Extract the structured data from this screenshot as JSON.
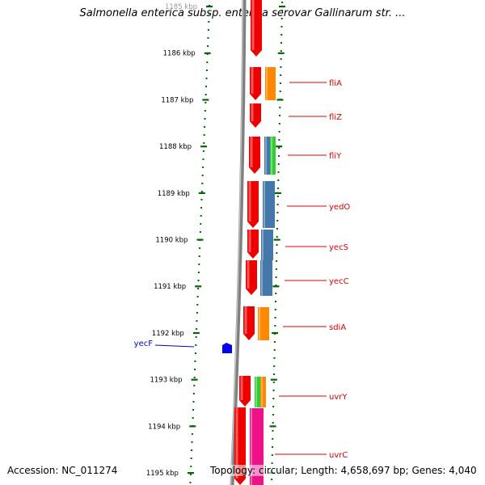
{
  "title": "Salmonella enterica subsp. enterica serovar Gallinarum str. ...",
  "footer": {
    "accession": "Accession: NC_011274",
    "topology": "Topology: circular; Length: 4,658,697 bp; Genes: 4,040"
  },
  "ticks": [
    "1185 kbp",
    "1186 kbp",
    "1187 kbp",
    "1188 kbp",
    "1189 kbp",
    "1190 kbp",
    "1191 kbp",
    "1192 kbp",
    "1193 kbp",
    "1194 kbp",
    "1195 kbp"
  ],
  "gene_labels_forward": [
    "fliA",
    "fliZ",
    "fliY",
    "yedO",
    "yecS",
    "yecC",
    "sdiA",
    "uvrY",
    "uvrC"
  ],
  "gene_labels_reverse": [
    "yecF"
  ],
  "colors": {
    "forward_label": "#dd0000",
    "reverse_label": "#0000cc",
    "forward_gene": "#ee0000",
    "reverse_gene": "#0000ee",
    "cog_orange": "#ff8800",
    "cog_steelblue": "#4477aa",
    "cog_green": "#33cc33",
    "cog_magenta": "#ee1188",
    "backbone": "#808080",
    "tick_green": "#006600"
  }
}
